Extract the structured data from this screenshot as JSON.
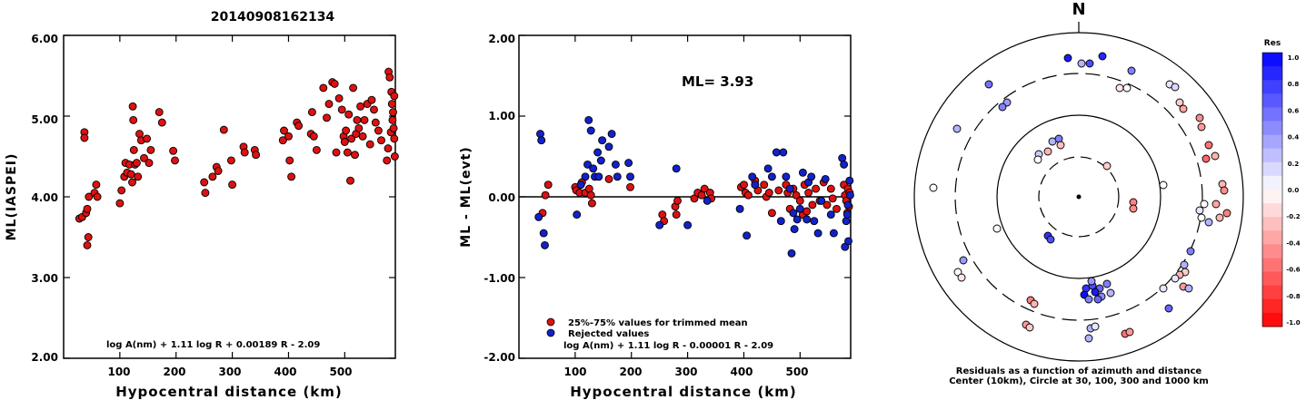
{
  "title": "20140908162134",
  "colors": {
    "accepted": "#dd1111",
    "rejected": "#1122cc",
    "line": "#000000"
  },
  "panel1": {
    "ylabel": "ML(IASPEI)",
    "xlabel": "Hypocentral distance (km)",
    "yticks": [
      "6.00",
      "5.00",
      "4.00",
      "3.00",
      "2.00"
    ],
    "xticks": [
      "100",
      "200",
      "300",
      "400",
      "500"
    ],
    "formula": "log A(nm) + 1.11 log R + 0.00189 R - 2.09"
  },
  "panel2": {
    "ylabel": "ML - ML(evt)",
    "xlabel": "Hypocentral distance (km)",
    "yticks": [
      "2.00",
      "1.00",
      "0.00",
      "-1.00",
      "-2.00"
    ],
    "xticks": [
      "100",
      "200",
      "300",
      "400",
      "500"
    ],
    "ml_text": "ML= 3.93",
    "legend": [
      "25%-75% values for trimmed mean",
      "Rejected values"
    ],
    "formula": "log A(nm) + 1.11 log R - 0.00001 R - 2.09"
  },
  "polar": {
    "north": "N",
    "caption_line1": "Residuals as a function of azimuth and distance",
    "caption_line2": "Center (10km), Circle at 30, 100, 300 and 1000 km"
  },
  "colorbar": {
    "title": "Res",
    "labels": [
      "1.0",
      "0.8",
      "0.6",
      "0.4",
      "0.2",
      "0.0",
      "-0.2",
      "-0.4",
      "-0.6",
      "-0.8",
      "-1.0"
    ]
  },
  "chart_data": [
    {
      "type": "scatter",
      "title": "20140908162134",
      "xlabel": "Hypocentral distance (km)",
      "ylabel": "ML(IASPEI)",
      "xlim": [
        0,
        590
      ],
      "ylim": [
        2.0,
        6.0
      ],
      "series": [
        {
          "points": [
            [
              28,
              3.73
            ],
            [
              33,
              3.75
            ],
            [
              37,
              4.8
            ],
            [
              37,
              4.73
            ],
            [
              40,
              3.8
            ],
            [
              42,
              3.85
            ],
            [
              42,
              3.4
            ],
            [
              44,
              3.5
            ],
            [
              45,
              4.0
            ],
            [
              55,
              4.05
            ],
            [
              58,
              4.15
            ],
            [
              60,
              4.0
            ],
            [
              100,
              3.92
            ],
            [
              103,
              4.08
            ],
            [
              108,
              4.25
            ],
            [
              110,
              4.42
            ],
            [
              113,
              4.3
            ],
            [
              117,
              4.4
            ],
            [
              120,
              4.28
            ],
            [
              122,
              4.18
            ],
            [
              123,
              5.12
            ],
            [
              124,
              4.95
            ],
            [
              125,
              4.58
            ],
            [
              127,
              4.4
            ],
            [
              130,
              4.42
            ],
            [
              132,
              4.25
            ],
            [
              135,
              4.78
            ],
            [
              138,
              4.7
            ],
            [
              143,
              4.48
            ],
            [
              148,
              4.72
            ],
            [
              152,
              4.42
            ],
            [
              155,
              4.58
            ],
            [
              170,
              5.05
            ],
            [
              175,
              4.92
            ],
            [
              195,
              4.57
            ],
            [
              198,
              4.45
            ],
            [
              250,
              4.18
            ],
            [
              252,
              4.05
            ],
            [
              265,
              4.25
            ],
            [
              272,
              4.37
            ],
            [
              275,
              4.32
            ],
            [
              285,
              4.83
            ],
            [
              298,
              4.45
            ],
            [
              300,
              4.15
            ],
            [
              320,
              4.62
            ],
            [
              322,
              4.55
            ],
            [
              340,
              4.58
            ],
            [
              342,
              4.52
            ],
            [
              390,
              4.7
            ],
            [
              392,
              4.82
            ],
            [
              400,
              4.75
            ],
            [
              402,
              4.45
            ],
            [
              405,
              4.25
            ],
            [
              415,
              4.92
            ],
            [
              418,
              4.88
            ],
            [
              440,
              4.78
            ],
            [
              442,
              5.05
            ],
            [
              445,
              4.75
            ],
            [
              450,
              4.58
            ],
            [
              462,
              5.35
            ],
            [
              468,
              4.98
            ],
            [
              472,
              5.15
            ],
            [
              478,
              5.42
            ],
            [
              482,
              5.4
            ],
            [
              485,
              4.55
            ],
            [
              490,
              5.22
            ],
            [
              495,
              5.08
            ],
            [
              498,
              4.75
            ],
            [
              500,
              4.68
            ],
            [
              502,
              4.82
            ],
            [
              505,
              4.55
            ],
            [
              507,
              5.02
            ],
            [
              510,
              4.2
            ],
            [
              512,
              4.72
            ],
            [
              515,
              5.35
            ],
            [
              518,
              4.52
            ],
            [
              520,
              4.78
            ],
            [
              522,
              4.95
            ],
            [
              525,
              4.85
            ],
            [
              528,
              5.12
            ],
            [
              532,
              4.75
            ],
            [
              535,
              4.95
            ],
            [
              540,
              5.15
            ],
            [
              545,
              4.65
            ],
            [
              548,
              5.2
            ],
            [
              552,
              5.08
            ],
            [
              555,
              4.92
            ],
            [
              560,
              4.82
            ],
            [
              565,
              4.7
            ],
            [
              575,
              4.45
            ],
            [
              577,
              4.6
            ],
            [
              578,
              5.55
            ],
            [
              580,
              5.48
            ],
            [
              582,
              4.8
            ],
            [
              583,
              5.3
            ],
            [
              584,
              5.15
            ],
            [
              585,
              4.95
            ],
            [
              586,
              5.05
            ],
            [
              587,
              4.85
            ],
            [
              588,
              4.72
            ],
            [
              588,
              5.25
            ],
            [
              589,
              4.5
            ]
          ]
        }
      ]
    },
    {
      "type": "scatter",
      "xlabel": "Hypocentral distance (km)",
      "ylabel": "ML - ML(evt)",
      "xlim": [
        0,
        590
      ],
      "ylim": [
        -2.0,
        2.0
      ],
      "series": [
        {
          "name": "25%-75% values for trimmed mean",
          "points": [
            [
              42,
              -0.2
            ],
            [
              47,
              0.02
            ],
            [
              52,
              0.15
            ],
            [
              100,
              0.12
            ],
            [
              102,
              0.08
            ],
            [
              108,
              0.05
            ],
            [
              112,
              0.18
            ],
            [
              118,
              0.05
            ],
            [
              125,
              0.1
            ],
            [
              128,
              0.02
            ],
            [
              130,
              -0.08
            ],
            [
              160,
              0.22
            ],
            [
              198,
              0.12
            ],
            [
              255,
              -0.22
            ],
            [
              258,
              -0.3
            ],
            [
              278,
              -0.12
            ],
            [
              280,
              -0.22
            ],
            [
              282,
              -0.05
            ],
            [
              312,
              -0.02
            ],
            [
              318,
              0.05
            ],
            [
              325,
              0.02
            ],
            [
              330,
              0.1
            ],
            [
              340,
              0.05
            ],
            [
              342,
              -0.02
            ],
            [
              395,
              0.12
            ],
            [
              400,
              0.15
            ],
            [
              403,
              0.05
            ],
            [
              408,
              0.02
            ],
            [
              420,
              0.2
            ],
            [
              425,
              0.08
            ],
            [
              436,
              0.15
            ],
            [
              440,
              0.0
            ],
            [
              445,
              0.05
            ],
            [
              450,
              -0.2
            ],
            [
              462,
              0.08
            ],
            [
              475,
              0.15
            ],
            [
              478,
              0.05
            ],
            [
              482,
              -0.15
            ],
            [
              488,
              0.1
            ],
            [
              493,
              0.02
            ],
            [
              500,
              -0.05
            ],
            [
              505,
              -0.22
            ],
            [
              508,
              0.15
            ],
            [
              512,
              -0.18
            ],
            [
              515,
              0.05
            ],
            [
              522,
              -0.1
            ],
            [
              528,
              0.1
            ],
            [
              535,
              -0.05
            ],
            [
              542,
              0.18
            ],
            [
              548,
              -0.1
            ],
            [
              555,
              0.1
            ],
            [
              558,
              -0.02
            ],
            [
              565,
              -0.15
            ],
            [
              578,
              0.15
            ],
            [
              580,
              0.02
            ],
            [
              582,
              -0.05
            ],
            [
              584,
              -0.2
            ],
            [
              585,
              0.1
            ],
            [
              587,
              -0.12
            ],
            [
              588,
              0.05
            ]
          ]
        },
        {
          "name": "Rejected values",
          "points": [
            [
              35,
              -0.25
            ],
            [
              38,
              0.78
            ],
            [
              40,
              0.7
            ],
            [
              44,
              -0.45
            ],
            [
              46,
              -0.6
            ],
            [
              103,
              -0.22
            ],
            [
              110,
              0.15
            ],
            [
              118,
              0.25
            ],
            [
              122,
              0.4
            ],
            [
              124,
              0.95
            ],
            [
              128,
              0.82
            ],
            [
              132,
              0.35
            ],
            [
              135,
              0.25
            ],
            [
              140,
              0.55
            ],
            [
              142,
              0.25
            ],
            [
              146,
              0.45
            ],
            [
              148,
              0.7
            ],
            [
              160,
              0.62
            ],
            [
              165,
              0.78
            ],
            [
              172,
              0.4
            ],
            [
              175,
              0.25
            ],
            [
              195,
              0.42
            ],
            [
              198,
              0.25
            ],
            [
              250,
              -0.35
            ],
            [
              280,
              0.35
            ],
            [
              300,
              -0.35
            ],
            [
              335,
              -0.05
            ],
            [
              393,
              -0.15
            ],
            [
              405,
              -0.48
            ],
            [
              415,
              0.25
            ],
            [
              420,
              0.15
            ],
            [
              443,
              0.35
            ],
            [
              450,
              0.25
            ],
            [
              458,
              0.55
            ],
            [
              466,
              -0.3
            ],
            [
              470,
              0.55
            ],
            [
              475,
              0.25
            ],
            [
              482,
              0.1
            ],
            [
              485,
              -0.7
            ],
            [
              488,
              -0.2
            ],
            [
              490,
              -0.4
            ],
            [
              495,
              -0.28
            ],
            [
              500,
              -0.15
            ],
            [
              505,
              0.3
            ],
            [
              512,
              -0.28
            ],
            [
              515,
              0.18
            ],
            [
              520,
              0.25
            ],
            [
              525,
              -0.3
            ],
            [
              532,
              -0.45
            ],
            [
              538,
              -0.05
            ],
            [
              545,
              0.22
            ],
            [
              555,
              -0.22
            ],
            [
              560,
              -0.45
            ],
            [
              575,
              0.48
            ],
            [
              578,
              0.4
            ],
            [
              580,
              -0.62
            ],
            [
              582,
              -0.3
            ],
            [
              584,
              -0.22
            ],
            [
              585,
              -0.1
            ],
            [
              586,
              -0.55
            ],
            [
              588,
              0.2
            ],
            [
              589,
              0.02
            ]
          ]
        }
      ]
    }
  ]
}
